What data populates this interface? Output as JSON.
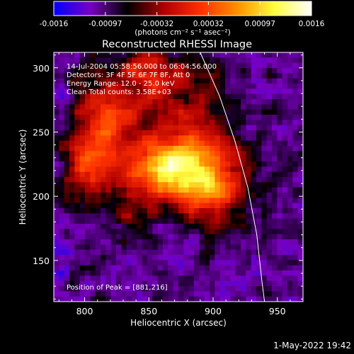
{
  "chart_data": {
    "type": "heatmap",
    "title": "Reconstructed RHESSI Image",
    "xlabel": "Heliocentric X (arcsec)",
    "ylabel": "Heliocentric Y (arcsec)",
    "xlim": [
      776,
      970
    ],
    "ylim": [
      118,
      312
    ],
    "xticks": [
      800,
      850,
      900,
      950
    ],
    "yticks": [
      150,
      200,
      250,
      300
    ],
    "colorbar": {
      "ticks": [
        "-0.0016",
        "-0.00097",
        "-0.00032",
        "0.00032",
        "0.00097",
        "0.0016"
      ],
      "label": "(photons cm⁻² s⁻¹ asec⁻²)",
      "min": -0.0016,
      "max": 0.0016,
      "palette": [
        "#0000ff",
        "#7a00c0",
        "#000000",
        "#b00000",
        "#ff3000",
        "#ff9000",
        "#ffff40",
        "#ffffff"
      ]
    },
    "annotations": [
      "14-Jul-2004 05:58:56.000 to 06:04:56.000",
      "Detectors: 3F 4F 5F 6F 7F 8F, Att 0",
      "Energy Range: 12.0 - 25.0 keV",
      "Clean    Total counts: 3.58E+03"
    ],
    "peak_text": "Position of Peak = [881,216]",
    "peak": [
      881,
      216
    ],
    "sources": [
      {
        "x": 881,
        "y": 218,
        "sx": 30,
        "sy": 22,
        "amp": 0.0019
      },
      {
        "x": 858,
        "y": 224,
        "sx": 16,
        "sy": 14,
        "amp": 0.0008
      },
      {
        "x": 900,
        "y": 205,
        "sx": 14,
        "sy": 12,
        "amp": 0.0005
      },
      {
        "x": 815,
        "y": 255,
        "sx": 16,
        "sy": 28,
        "amp": 0.0012
      },
      {
        "x": 800,
        "y": 220,
        "sx": 14,
        "sy": 18,
        "amp": 0.0008
      },
      {
        "x": 865,
        "y": 282,
        "sx": 28,
        "sy": 20,
        "amp": 0.00085
      },
      {
        "x": 842,
        "y": 300,
        "sx": 14,
        "sy": 10,
        "amp": 0.0006
      },
      {
        "x": 890,
        "y": 250,
        "sx": 14,
        "sy": 10,
        "amp": 0.0005
      },
      {
        "x": 835,
        "y": 185,
        "sx": 10,
        "sy": 8,
        "amp": 0.00045
      },
      {
        "x": 905,
        "y": 175,
        "sx": 12,
        "sy": 10,
        "amp": 0.00035
      }
    ],
    "limb": {
      "points": [
        [
          890,
          312
        ],
        [
          905,
          278
        ],
        [
          917,
          243
        ],
        [
          927,
          207
        ],
        [
          934,
          170
        ],
        [
          938,
          134
        ],
        [
          940,
          118
        ]
      ]
    }
  },
  "footer": {
    "timestamp": "1-May-2022 19:42"
  }
}
